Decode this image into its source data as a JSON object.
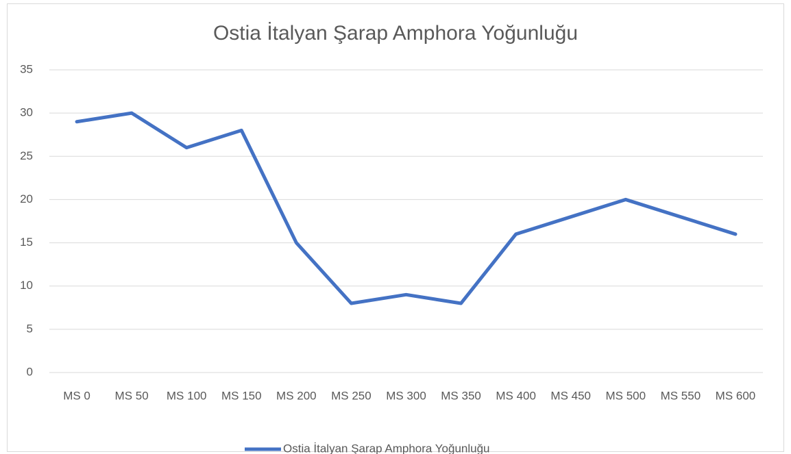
{
  "chart_data": {
    "type": "line",
    "title": "Ostia İtalyan Şarap Amphora Yoğunluğu",
    "categories": [
      "MS 0",
      "MS 50",
      "MS 100",
      "MS 150",
      "MS 200",
      "MS 250",
      "MS 300",
      "MS 350",
      "MS 400",
      "MS 450",
      "MS 500",
      "MS 550",
      "MS 600"
    ],
    "series": [
      {
        "name": "Ostia İtalyan Şarap Amphora Yoğunluğu",
        "color": "#4472c4",
        "values": [
          29,
          30,
          26,
          28,
          15,
          8,
          9,
          8,
          16,
          18,
          20,
          18,
          16
        ]
      }
    ],
    "ylim": [
      0,
      35
    ],
    "yticks": [
      0,
      5,
      10,
      15,
      20,
      25,
      30,
      35
    ],
    "grid": true,
    "legend": "bottom"
  }
}
